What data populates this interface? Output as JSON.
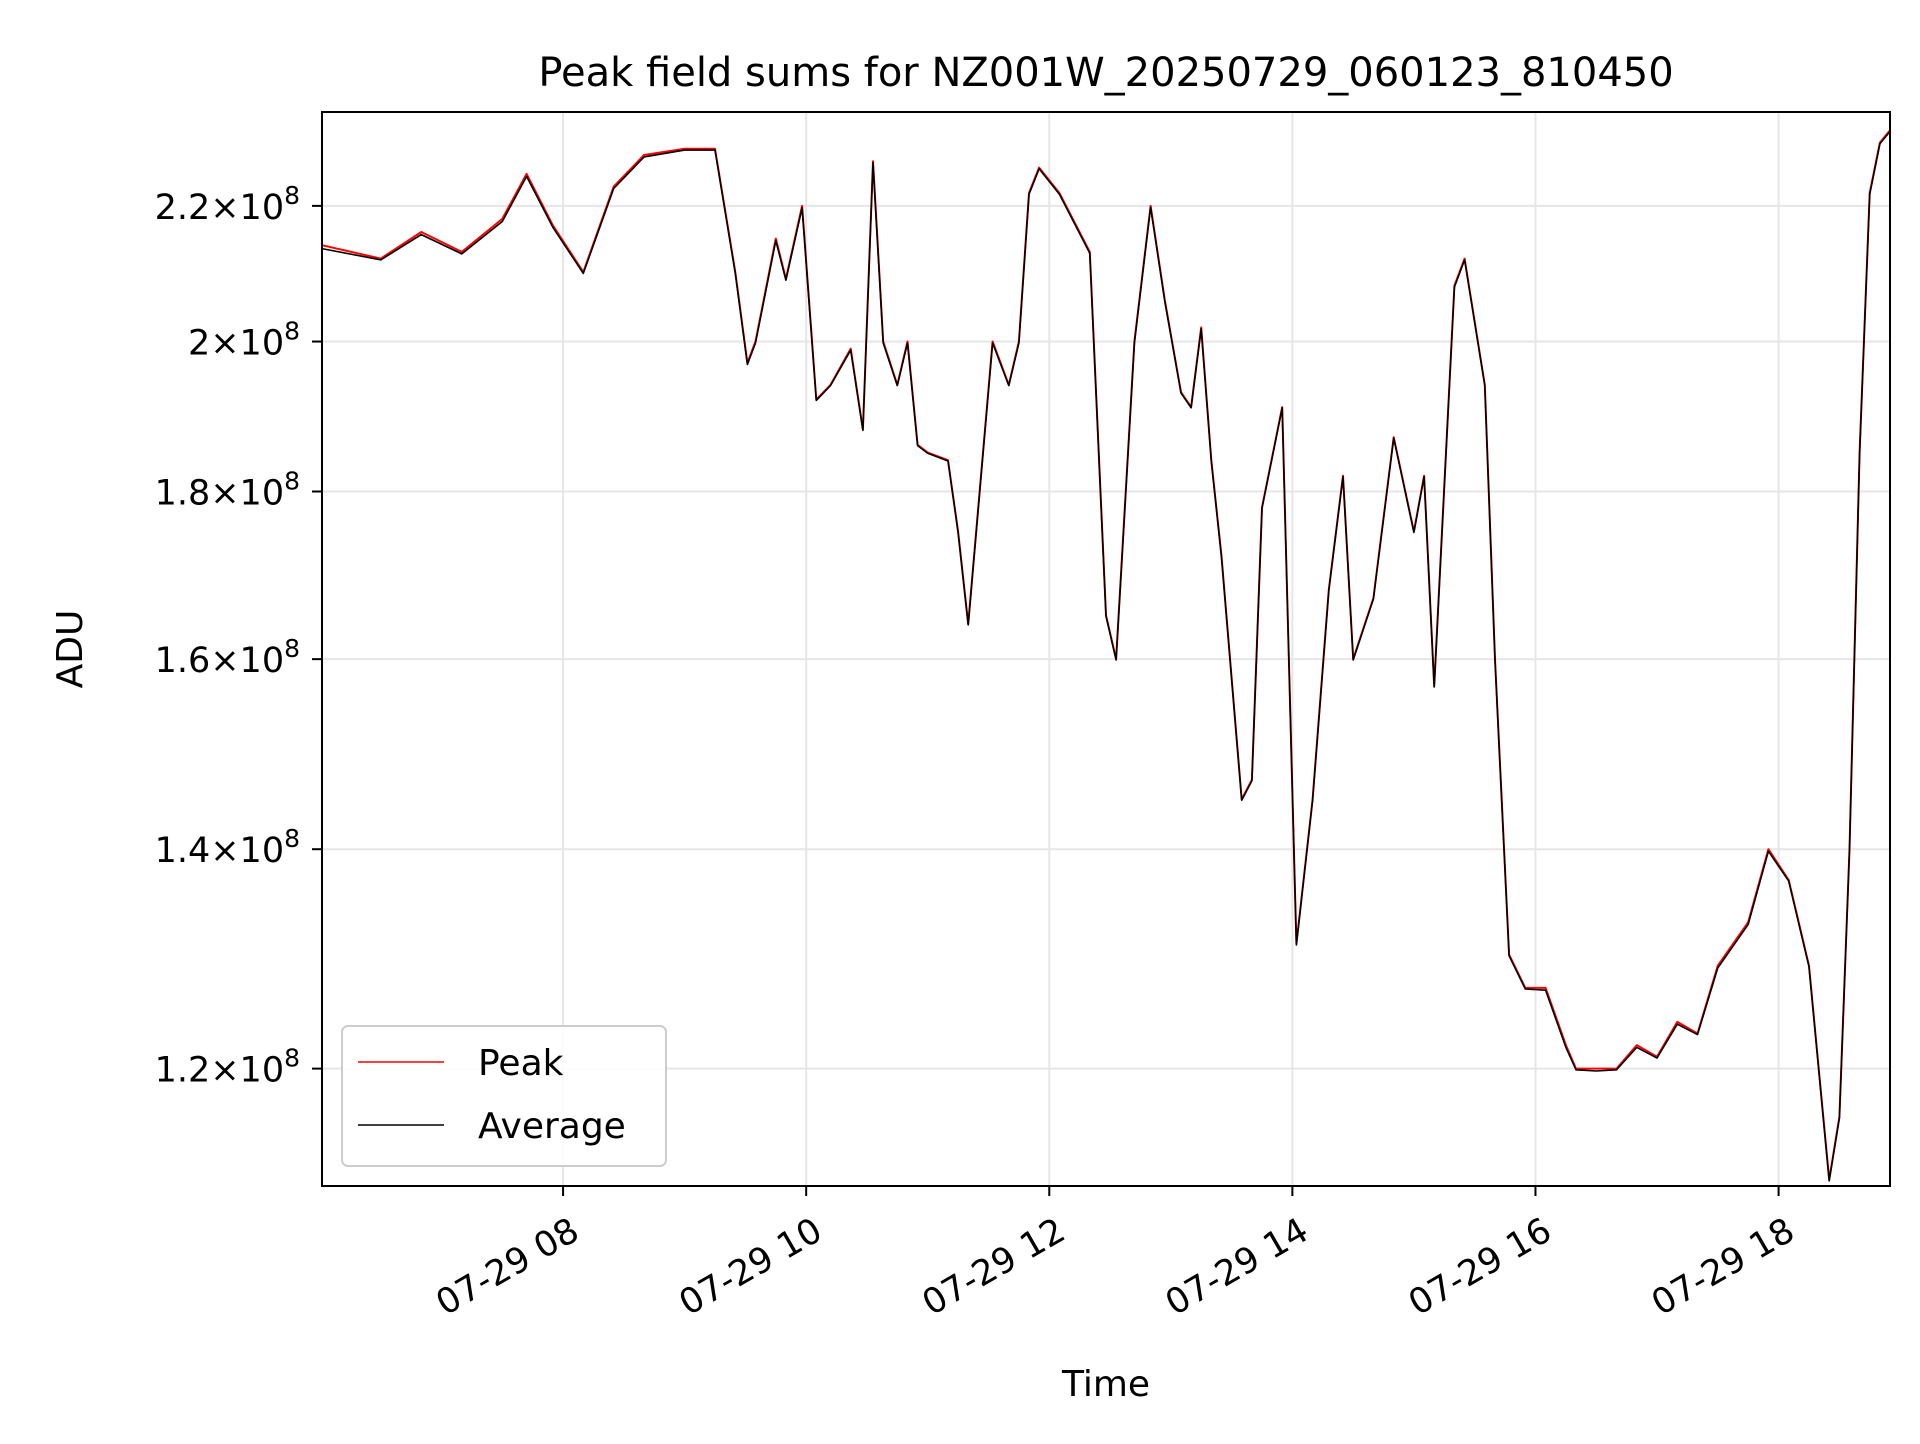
{
  "chart_data": {
    "type": "line",
    "title": "Peak field sums for NZ001W_20250729_060123_810450",
    "xlabel": "Time",
    "ylabel": "ADU",
    "y_scale": "log",
    "grid": true,
    "legend_position": "lower-left",
    "xlim": [
      "2025-07-29 06:01",
      "2025-07-29 18:55"
    ],
    "ylim": [
      110500000,
      235000000
    ],
    "x_ticks": [
      {
        "value": "2025-07-29 08:00",
        "label": "07-29 08"
      },
      {
        "value": "2025-07-29 10:00",
        "label": "07-29 10"
      },
      {
        "value": "2025-07-29 12:00",
        "label": "07-29 12"
      },
      {
        "value": "2025-07-29 14:00",
        "label": "07-29 14"
      },
      {
        "value": "2025-07-29 16:00",
        "label": "07-29 16"
      },
      {
        "value": "2025-07-29 18:00",
        "label": "07-29 18"
      }
    ],
    "y_ticks": [
      {
        "value": 120000000,
        "mantissa": "1.2",
        "base": "10",
        "exp": "8"
      },
      {
        "value": 140000000,
        "mantissa": "1.4",
        "base": "10",
        "exp": "8"
      },
      {
        "value": 160000000,
        "mantissa": "1.6",
        "base": "10",
        "exp": "8"
      },
      {
        "value": 180000000,
        "mantissa": "1.8",
        "base": "10",
        "exp": "8"
      },
      {
        "value": 200000000,
        "mantissa": "2",
        "base": "10",
        "exp": "8"
      },
      {
        "value": 220000000,
        "mantissa": "2.2",
        "base": "10",
        "exp": "8"
      }
    ],
    "series": [
      {
        "name": "Peak",
        "color": "#ff0000",
        "x": [
          "2025-07-29 06:01",
          "2025-07-29 06:30",
          "2025-07-29 06:50",
          "2025-07-29 07:10",
          "2025-07-29 07:30",
          "2025-07-29 07:42",
          "2025-07-29 07:55",
          "2025-07-29 08:10",
          "2025-07-29 08:25",
          "2025-07-29 08:40",
          "2025-07-29 09:00",
          "2025-07-29 09:15",
          "2025-07-29 09:25",
          "2025-07-29 09:31",
          "2025-07-29 09:35",
          "2025-07-29 09:45",
          "2025-07-29 09:50",
          "2025-07-29 09:58",
          "2025-07-29 10:05",
          "2025-07-29 10:12",
          "2025-07-29 10:22",
          "2025-07-29 10:28",
          "2025-07-29 10:33",
          "2025-07-29 10:38",
          "2025-07-29 10:45",
          "2025-07-29 10:50",
          "2025-07-29 10:55",
          "2025-07-29 11:00",
          "2025-07-29 11:10",
          "2025-07-29 11:15",
          "2025-07-29 11:20",
          "2025-07-29 11:32",
          "2025-07-29 11:40",
          "2025-07-29 11:45",
          "2025-07-29 11:50",
          "2025-07-29 11:55",
          "2025-07-29 12:05",
          "2025-07-29 12:20",
          "2025-07-29 12:28",
          "2025-07-29 12:33",
          "2025-07-29 12:42",
          "2025-07-29 12:50",
          "2025-07-29 12:57",
          "2025-07-29 13:05",
          "2025-07-29 13:10",
          "2025-07-29 13:15",
          "2025-07-29 13:20",
          "2025-07-29 13:25",
          "2025-07-29 13:35",
          "2025-07-29 13:40",
          "2025-07-29 13:45",
          "2025-07-29 13:55",
          "2025-07-29 14:02",
          "2025-07-29 14:10",
          "2025-07-29 14:18",
          "2025-07-29 14:25",
          "2025-07-29 14:30",
          "2025-07-29 14:40",
          "2025-07-29 14:50",
          "2025-07-29 15:00",
          "2025-07-29 15:05",
          "2025-07-29 15:10",
          "2025-07-29 15:20",
          "2025-07-29 15:25",
          "2025-07-29 15:35",
          "2025-07-29 15:40",
          "2025-07-29 15:47",
          "2025-07-29 15:55",
          "2025-07-29 16:05",
          "2025-07-29 16:15",
          "2025-07-29 16:20",
          "2025-07-29 16:30",
          "2025-07-29 16:40",
          "2025-07-29 16:50",
          "2025-07-29 17:00",
          "2025-07-29 17:10",
          "2025-07-29 17:20",
          "2025-07-29 17:30",
          "2025-07-29 17:45",
          "2025-07-29 17:55",
          "2025-07-29 18:05",
          "2025-07-29 18:15",
          "2025-07-29 18:25",
          "2025-07-29 18:30",
          "2025-07-29 18:35",
          "2025-07-29 18:40",
          "2025-07-29 18:45",
          "2025-07-29 18:50",
          "2025-07-29 18:55"
        ],
        "values": [
          214000000,
          212000000,
          216000000,
          213000000,
          218000000,
          225000000,
          217000000,
          210000000,
          223000000,
          228000000,
          229000000,
          229000000,
          210000000,
          197000000,
          200000000,
          215000000,
          209000000,
          220000000,
          192000000,
          194000000,
          199000000,
          188000000,
          227000000,
          200000000,
          194000000,
          200000000,
          186000000,
          185000000,
          184000000,
          175000000,
          164000000,
          200000000,
          194000000,
          200000000,
          222000000,
          226000000,
          222000000,
          213000000,
          165000000,
          160000000,
          200000000,
          220000000,
          206000000,
          193000000,
          191000000,
          202000000,
          184000000,
          172000000,
          145000000,
          147000000,
          178000000,
          191000000,
          131000000,
          145000000,
          168000000,
          182000000,
          160000000,
          167000000,
          187000000,
          175000000,
          182000000,
          157000000,
          208000000,
          212000000,
          194000000,
          160000000,
          130000000,
          127000000,
          127000000,
          122000000,
          120000000,
          120000000,
          120000000,
          122000000,
          121000000,
          124000000,
          123000000,
          129000000,
          133000000,
          140000000,
          137000000,
          129000000,
          111000000,
          116000000,
          140000000,
          185000000,
          222000000,
          230000000,
          232000000
        ]
      },
      {
        "name": "Average",
        "color": "#000000",
        "x": [
          "2025-07-29 06:01",
          "2025-07-29 06:30",
          "2025-07-29 06:50",
          "2025-07-29 07:10",
          "2025-07-29 07:30",
          "2025-07-29 07:42",
          "2025-07-29 07:55",
          "2025-07-29 08:10",
          "2025-07-29 08:25",
          "2025-07-29 08:40",
          "2025-07-29 09:00",
          "2025-07-29 09:15",
          "2025-07-29 09:25",
          "2025-07-29 09:31",
          "2025-07-29 09:35",
          "2025-07-29 09:45",
          "2025-07-29 09:50",
          "2025-07-29 09:58",
          "2025-07-29 10:05",
          "2025-07-29 10:12",
          "2025-07-29 10:22",
          "2025-07-29 10:28",
          "2025-07-29 10:33",
          "2025-07-29 10:38",
          "2025-07-29 10:45",
          "2025-07-29 10:50",
          "2025-07-29 10:55",
          "2025-07-29 11:00",
          "2025-07-29 11:10",
          "2025-07-29 11:15",
          "2025-07-29 11:20",
          "2025-07-29 11:32",
          "2025-07-29 11:40",
          "2025-07-29 11:45",
          "2025-07-29 11:50",
          "2025-07-29 11:55",
          "2025-07-29 12:05",
          "2025-07-29 12:20",
          "2025-07-29 12:28",
          "2025-07-29 12:33",
          "2025-07-29 12:42",
          "2025-07-29 12:50",
          "2025-07-29 12:57",
          "2025-07-29 13:05",
          "2025-07-29 13:10",
          "2025-07-29 13:15",
          "2025-07-29 13:20",
          "2025-07-29 13:25",
          "2025-07-29 13:35",
          "2025-07-29 13:40",
          "2025-07-29 13:45",
          "2025-07-29 13:55",
          "2025-07-29 14:02",
          "2025-07-29 14:10",
          "2025-07-29 14:18",
          "2025-07-29 14:25",
          "2025-07-29 14:30",
          "2025-07-29 14:40",
          "2025-07-29 14:50",
          "2025-07-29 15:00",
          "2025-07-29 15:05",
          "2025-07-29 15:10",
          "2025-07-29 15:20",
          "2025-07-29 15:25",
          "2025-07-29 15:35",
          "2025-07-29 15:40",
          "2025-07-29 15:47",
          "2025-07-29 15:55",
          "2025-07-29 16:05",
          "2025-07-29 16:15",
          "2025-07-29 16:20",
          "2025-07-29 16:30",
          "2025-07-29 16:40",
          "2025-07-29 16:50",
          "2025-07-29 17:00",
          "2025-07-29 17:10",
          "2025-07-29 17:20",
          "2025-07-29 17:30",
          "2025-07-29 17:45",
          "2025-07-29 17:55",
          "2025-07-29 18:05",
          "2025-07-29 18:15",
          "2025-07-29 18:25",
          "2025-07-29 18:30",
          "2025-07-29 18:35",
          "2025-07-29 18:40",
          "2025-07-29 18:45",
          "2025-07-29 18:50",
          "2025-07-29 18:55"
        ],
        "values": [
          213500000,
          211800000,
          215600000,
          212700000,
          217600000,
          224600000,
          216700000,
          209800000,
          222700000,
          227700000,
          228800000,
          228800000,
          209800000,
          196800000,
          199800000,
          214700000,
          208800000,
          219700000,
          191900000,
          193900000,
          198800000,
          187900000,
          226800000,
          199800000,
          193900000,
          199800000,
          185900000,
          184900000,
          183900000,
          174900000,
          163900000,
          199800000,
          193900000,
          199800000,
          221800000,
          225800000,
          221800000,
          212800000,
          164900000,
          159900000,
          199800000,
          219800000,
          205800000,
          192900000,
          190900000,
          201800000,
          183900000,
          171900000,
          144900000,
          146900000,
          177900000,
          190900000,
          130900000,
          144900000,
          167900000,
          181900000,
          159900000,
          166900000,
          186900000,
          174900000,
          181900000,
          156900000,
          207800000,
          211800000,
          193900000,
          159900000,
          129900000,
          126900000,
          126800000,
          121800000,
          119900000,
          119800000,
          119900000,
          121800000,
          120900000,
          123800000,
          122900000,
          128800000,
          132800000,
          139800000,
          136900000,
          128900000,
          110900000,
          115900000,
          139900000,
          184900000,
          221800000,
          229800000,
          231800000
        ]
      }
    ]
  }
}
